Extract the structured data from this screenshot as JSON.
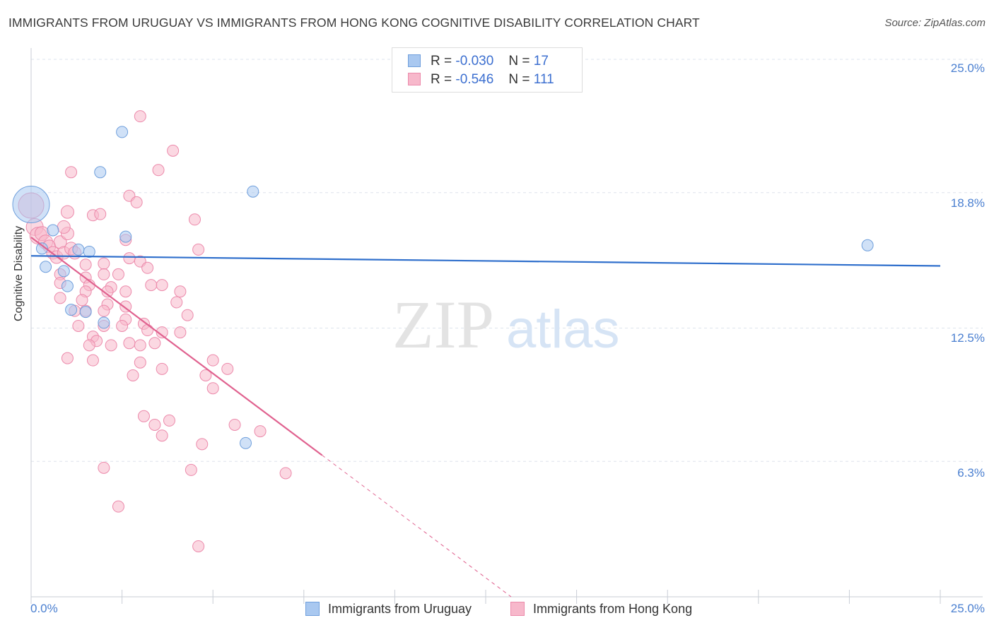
{
  "header": {
    "title": "IMMIGRANTS FROM URUGUAY VS IMMIGRANTS FROM HONG KONG COGNITIVE DISABILITY CORRELATION CHART",
    "source": "Source: ZipAtlas.com"
  },
  "watermark": {
    "zip": "ZIP",
    "atlas": "atlas"
  },
  "legend": {
    "rows": [
      {
        "r_label": "R =",
        "r_value": "-0.030",
        "n_label": "N =",
        "n_value": "17"
      },
      {
        "r_label": "R =",
        "r_value": "-0.546",
        "n_label": "N =",
        "n_value": "111"
      }
    ]
  },
  "colors": {
    "uruguay_fill": "#a9c8f0",
    "uruguay_stroke": "#6f9fdc",
    "uruguay_line": "#2f6fcc",
    "hongkong_fill": "#f7b8cb",
    "hongkong_stroke": "#ec8aab",
    "hongkong_line": "#e0628f",
    "grid": "#dde3ec",
    "tick_label": "#4a7fd0"
  },
  "chart_data": {
    "type": "scatter",
    "title": "IMMIGRANTS FROM URUGUAY VS IMMIGRANTS FROM HONG KONG COGNITIVE DISABILITY CORRELATION CHART",
    "xlabel": "",
    "ylabel": "Cognitive Disability",
    "xlim": [
      0,
      25
    ],
    "ylim": [
      0,
      25
    ],
    "y_ticks": [
      {
        "value": 6.3,
        "label": "6.3%"
      },
      {
        "value": 12.5,
        "label": "12.5%"
      },
      {
        "value": 18.8,
        "label": "18.8%"
      },
      {
        "value": 25.0,
        "label": "25.0%"
      }
    ],
    "x_tick_labels": [
      {
        "value": 0,
        "label": "0.0%"
      },
      {
        "value": 25,
        "label": "25.0%"
      }
    ],
    "grid": true,
    "legend_position": "top-center",
    "series": [
      {
        "name": "Immigrants from Uruguay",
        "r": -0.03,
        "n": 17,
        "trend": {
          "x0": 0.0,
          "y0": 15.86,
          "x1": 25.0,
          "y1": 15.39,
          "solid_until": 25.0
        },
        "points": [
          [
            0.0,
            18.25,
            26
          ],
          [
            2.5,
            21.62,
            8
          ],
          [
            1.9,
            19.75,
            8
          ],
          [
            6.1,
            18.85,
            8
          ],
          [
            2.6,
            16.75,
            8
          ],
          [
            0.6,
            17.05,
            8
          ],
          [
            1.3,
            16.15,
            8
          ],
          [
            1.6,
            16.05,
            8
          ],
          [
            0.3,
            16.2,
            8
          ],
          [
            0.4,
            15.35,
            8
          ],
          [
            0.9,
            15.15,
            8
          ],
          [
            1.0,
            14.45,
            8
          ],
          [
            1.1,
            13.35,
            8
          ],
          [
            1.5,
            13.25,
            8
          ],
          [
            2.0,
            12.75,
            8
          ],
          [
            5.9,
            7.15,
            8
          ],
          [
            23.0,
            16.35,
            8
          ]
        ]
      },
      {
        "name": "Immigrants from Hong Kong",
        "r": -0.546,
        "n": 111,
        "trend": {
          "x0": 0.0,
          "y0": 16.72,
          "x1": 13.2,
          "y1": 0.0,
          "solid_until": 8.0
        },
        "points": [
          [
            0.0,
            18.2,
            18
          ],
          [
            0.1,
            17.2,
            12
          ],
          [
            0.2,
            16.8,
            12
          ],
          [
            0.3,
            16.9,
            10
          ],
          [
            0.4,
            16.5,
            10
          ],
          [
            0.5,
            16.3,
            9
          ],
          [
            0.6,
            16.0,
            9
          ],
          [
            0.7,
            15.8,
            9
          ],
          [
            0.8,
            16.5,
            9
          ],
          [
            0.9,
            16.0,
            9
          ],
          [
            1.0,
            17.9,
            9
          ],
          [
            1.0,
            16.9,
            9
          ],
          [
            1.1,
            16.2,
            9
          ],
          [
            0.9,
            17.2,
            9
          ],
          [
            1.2,
            16.0,
            9
          ],
          [
            3.0,
            22.35,
            8
          ],
          [
            3.9,
            20.75,
            8
          ],
          [
            1.1,
            19.75,
            8
          ],
          [
            3.5,
            19.85,
            8
          ],
          [
            2.7,
            18.65,
            8
          ],
          [
            2.9,
            18.35,
            8
          ],
          [
            1.7,
            17.75,
            8
          ],
          [
            1.9,
            17.8,
            8
          ],
          [
            4.5,
            17.55,
            8
          ],
          [
            2.6,
            16.6,
            8
          ],
          [
            4.6,
            16.15,
            8
          ],
          [
            2.7,
            15.75,
            8
          ],
          [
            3.0,
            15.6,
            8
          ],
          [
            3.2,
            15.3,
            8
          ],
          [
            2.0,
            15.5,
            8
          ],
          [
            1.5,
            15.45,
            8
          ],
          [
            2.4,
            15.0,
            8
          ],
          [
            2.0,
            15.0,
            8
          ],
          [
            1.5,
            14.85,
            8
          ],
          [
            0.8,
            15.0,
            8
          ],
          [
            0.8,
            14.6,
            8
          ],
          [
            1.6,
            14.5,
            8
          ],
          [
            2.2,
            14.4,
            8
          ],
          [
            1.5,
            14.2,
            8
          ],
          [
            2.1,
            14.2,
            8
          ],
          [
            2.6,
            14.2,
            8
          ],
          [
            3.3,
            14.5,
            8
          ],
          [
            3.6,
            14.5,
            8
          ],
          [
            4.1,
            14.2,
            8
          ],
          [
            0.8,
            13.9,
            8
          ],
          [
            1.4,
            13.8,
            8
          ],
          [
            2.1,
            13.6,
            8
          ],
          [
            2.6,
            13.5,
            8
          ],
          [
            4.0,
            13.7,
            8
          ],
          [
            1.2,
            13.3,
            8
          ],
          [
            1.5,
            13.3,
            8
          ],
          [
            2.0,
            13.3,
            8
          ],
          [
            4.3,
            13.1,
            8
          ],
          [
            2.6,
            12.9,
            8
          ],
          [
            1.3,
            12.6,
            8
          ],
          [
            2.0,
            12.6,
            8
          ],
          [
            2.5,
            12.6,
            8
          ],
          [
            3.1,
            12.7,
            8
          ],
          [
            3.2,
            12.4,
            8
          ],
          [
            3.6,
            12.3,
            8
          ],
          [
            4.1,
            12.3,
            8
          ],
          [
            1.7,
            12.1,
            8
          ],
          [
            1.8,
            11.9,
            8
          ],
          [
            1.6,
            11.7,
            8
          ],
          [
            2.2,
            11.7,
            8
          ],
          [
            2.7,
            11.8,
            8
          ],
          [
            3.0,
            11.7,
            8
          ],
          [
            3.4,
            11.8,
            8
          ],
          [
            1.0,
            11.1,
            8
          ],
          [
            1.7,
            11.0,
            8
          ],
          [
            3.0,
            10.9,
            8
          ],
          [
            3.6,
            10.6,
            8
          ],
          [
            5.0,
            11.0,
            8
          ],
          [
            5.4,
            10.6,
            8
          ],
          [
            4.8,
            10.3,
            8
          ],
          [
            2.8,
            10.3,
            8
          ],
          [
            5.0,
            9.7,
            8
          ],
          [
            3.1,
            8.4,
            8
          ],
          [
            3.4,
            8.0,
            8
          ],
          [
            3.8,
            8.2,
            8
          ],
          [
            5.6,
            8.0,
            8
          ],
          [
            6.3,
            7.7,
            8
          ],
          [
            3.6,
            7.5,
            8
          ],
          [
            4.7,
            7.1,
            8
          ],
          [
            2.0,
            6.0,
            8
          ],
          [
            4.4,
            5.9,
            8
          ],
          [
            7.0,
            5.75,
            8
          ],
          [
            2.4,
            4.2,
            8
          ],
          [
            4.6,
            2.35,
            8
          ]
        ]
      }
    ]
  },
  "bottom_legend": [
    {
      "label": "Immigrants from Uruguay"
    },
    {
      "label": "Immigrants from Hong Kong"
    }
  ]
}
